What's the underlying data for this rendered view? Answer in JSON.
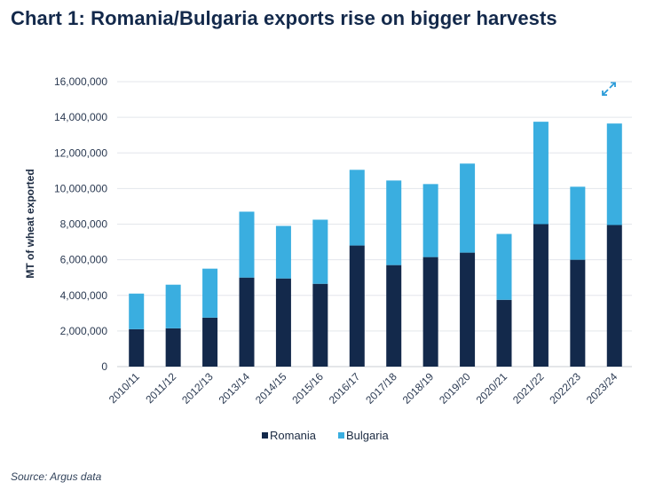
{
  "title": "Chart 1: Romania/Bulgaria exports rise on bigger harvests",
  "source": "Source: Argus data",
  "expand_icon": "expand-icon",
  "colors": {
    "romania": "#13294b",
    "bulgaria": "#3aaee0",
    "grid": "#e3e6eb",
    "axis": "#c9cdd3"
  },
  "chart_data": {
    "type": "bar",
    "stacked": true,
    "title": "Chart 1: Romania/Bulgaria exports rise on bigger harvests",
    "xlabel": "",
    "ylabel": "MT of wheat exported",
    "ylim": [
      0,
      16000000
    ],
    "yticks": [
      0,
      2000000,
      4000000,
      6000000,
      8000000,
      10000000,
      12000000,
      14000000,
      16000000
    ],
    "ytick_labels": [
      "0",
      "2,000,000",
      "4,000,000",
      "6,000,000",
      "8,000,000",
      "10,000,000",
      "12,000,000",
      "14,000,000",
      "16,000,000"
    ],
    "categories": [
      "2010/11",
      "2011/12",
      "2012/13",
      "2013/14",
      "2014/15",
      "2015/16",
      "2016/17",
      "2017/18",
      "2018/19",
      "2019/20",
      "2020/21",
      "2021/22",
      "2022/23",
      "2023/24"
    ],
    "series": [
      {
        "name": "Romania",
        "values": [
          2100000,
          2150000,
          2750000,
          5000000,
          4950000,
          4650000,
          6800000,
          5700000,
          6150000,
          6400000,
          3750000,
          8000000,
          6000000,
          7950000
        ]
      },
      {
        "name": "Bulgaria",
        "values": [
          2000000,
          2450000,
          2750000,
          3700000,
          2950000,
          3600000,
          4250000,
          4750000,
          4100000,
          5000000,
          3700000,
          5750000,
          4100000,
          5700000
        ]
      }
    ],
    "legend": [
      "Romania",
      "Bulgaria"
    ],
    "legend_position": "bottom-center",
    "grid": true
  }
}
